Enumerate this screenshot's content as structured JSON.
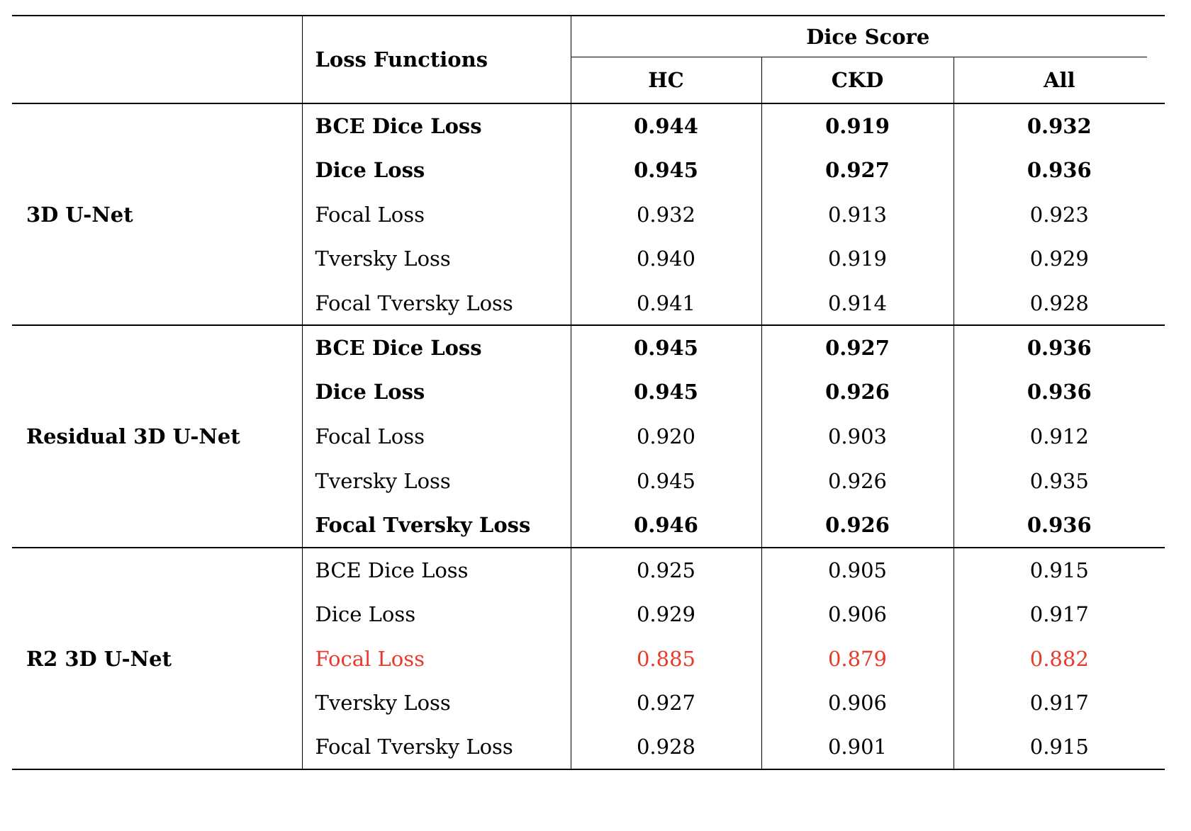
{
  "table": {
    "header": {
      "loss_functions_label": "Loss Functions",
      "dice_score_label": "Dice Score",
      "sub_columns": {
        "hc": "HC",
        "ckd": "CKD",
        "all": "All"
      }
    },
    "groups": [
      {
        "model": "3D U-Net",
        "rows": [
          {
            "loss": "BCE Dice Loss",
            "hc": "0.944",
            "ckd": "0.919",
            "all": "0.932",
            "style": "bold"
          },
          {
            "loss": "Dice Loss",
            "hc": "0.945",
            "ckd": "0.927",
            "all": "0.936",
            "style": "bold"
          },
          {
            "loss": "Focal Loss",
            "hc": "0.932",
            "ckd": "0.913",
            "all": "0.923",
            "style": "normal"
          },
          {
            "loss": "Tversky Loss",
            "hc": "0.940",
            "ckd": "0.919",
            "all": "0.929",
            "style": "normal"
          },
          {
            "loss": "Focal Tversky Loss",
            "hc": "0.941",
            "ckd": "0.914",
            "all": "0.928",
            "style": "normal"
          }
        ]
      },
      {
        "model": "Residual 3D U-Net",
        "rows": [
          {
            "loss": "BCE Dice Loss",
            "hc": "0.945",
            "ckd": "0.927",
            "all": "0.936",
            "style": "bold"
          },
          {
            "loss": "Dice Loss",
            "hc": "0.945",
            "ckd": "0.926",
            "all": "0.936",
            "style": "bold"
          },
          {
            "loss": "Focal Loss",
            "hc": "0.920",
            "ckd": "0.903",
            "all": "0.912",
            "style": "normal"
          },
          {
            "loss": "Tversky Loss",
            "hc": "0.945",
            "ckd": "0.926",
            "all": "0.935",
            "style": "normal"
          },
          {
            "loss": "Focal Tversky Loss",
            "hc": "0.946",
            "ckd": "0.926",
            "all": "0.936",
            "style": "bold"
          }
        ]
      },
      {
        "model": "R2 3D U-Net",
        "rows": [
          {
            "loss": "BCE Dice Loss",
            "hc": "0.925",
            "ckd": "0.905",
            "all": "0.915",
            "style": "normal"
          },
          {
            "loss": "Dice Loss",
            "hc": "0.929",
            "ckd": "0.906",
            "all": "0.917",
            "style": "normal"
          },
          {
            "loss": "Focal Loss",
            "hc": "0.885",
            "ckd": "0.879",
            "all": "0.882",
            "style": "red"
          },
          {
            "loss": "Tversky Loss",
            "hc": "0.927",
            "ckd": "0.906",
            "all": "0.917",
            "style": "normal"
          },
          {
            "loss": "Focal Tversky Loss",
            "hc": "0.928",
            "ckd": "0.901",
            "all": "0.915",
            "style": "normal"
          }
        ]
      }
    ]
  },
  "colors": {
    "highlight_red": "#e8392b",
    "text": "#000000",
    "background": "#ffffff"
  }
}
